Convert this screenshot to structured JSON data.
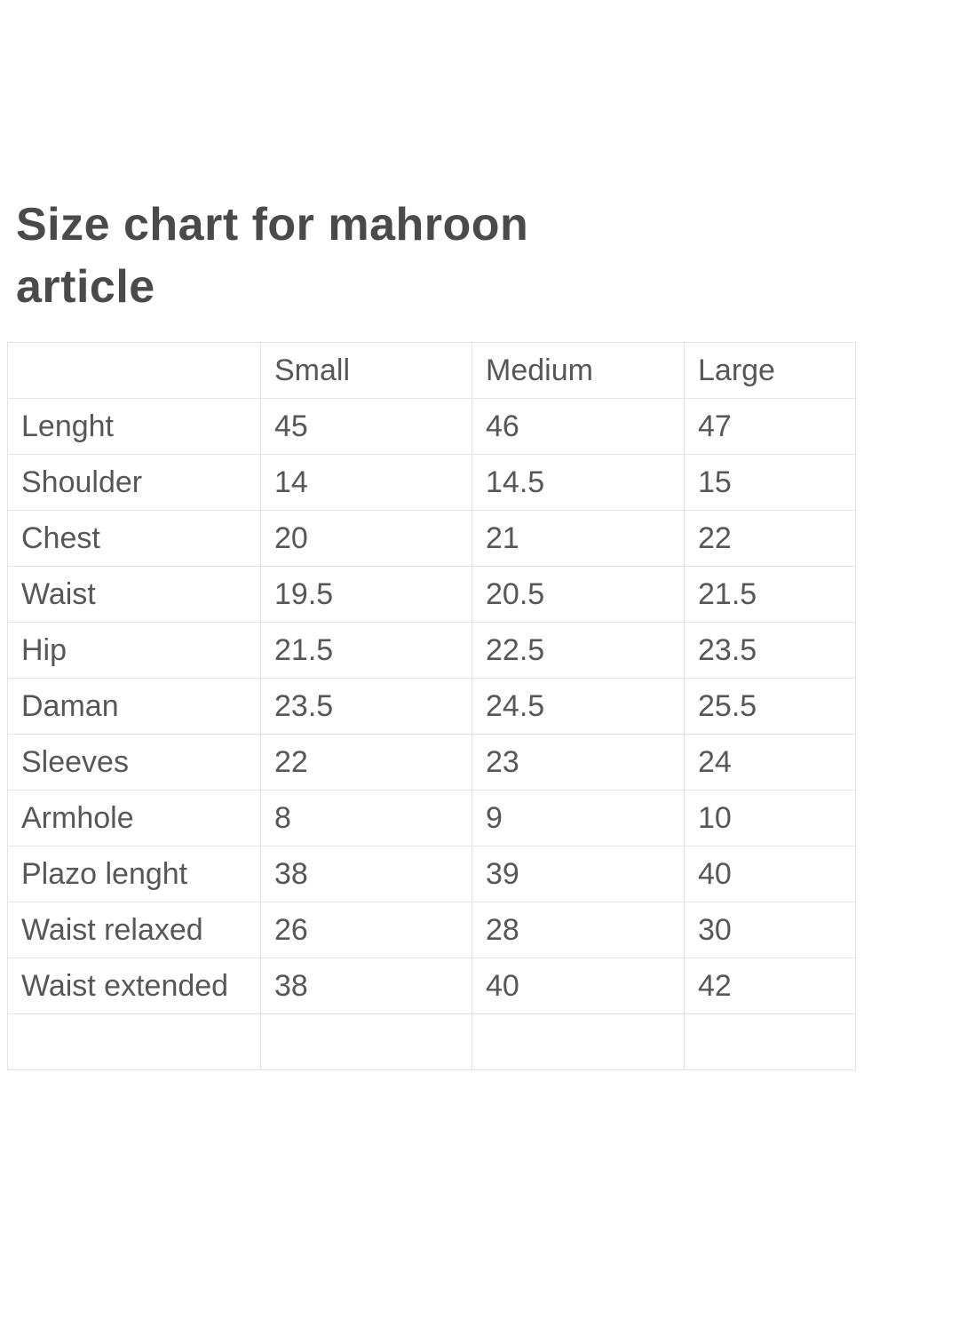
{
  "page": {
    "title": "Size chart for mahroon article",
    "title_line1": "Size chart for mahroon",
    "title_line2": "article"
  },
  "table": {
    "header": {
      "label": "",
      "small": "Small",
      "medium": "Medium",
      "large": "Large"
    },
    "rows": [
      {
        "label": "Lenght",
        "small": "45",
        "medium": "46",
        "large": "47"
      },
      {
        "label": "Shoulder",
        "small": "14",
        "medium": "14.5",
        "large": "15"
      },
      {
        "label": "Chest",
        "small": "20",
        "medium": "21",
        "large": "22"
      },
      {
        "label": "Waist",
        "small": "19.5",
        "medium": "20.5",
        "large": "21.5"
      },
      {
        "label": "Hip",
        "small": "21.5",
        "medium": "22.5",
        "large": "23.5"
      },
      {
        "label": "Daman",
        "small": "23.5",
        "medium": "24.5",
        "large": "25.5"
      },
      {
        "label": "Sleeves",
        "small": "22",
        "medium": "23",
        "large": "24"
      },
      {
        "label": "Armhole",
        "small": "8",
        "medium": "9",
        "large": "10"
      },
      {
        "label": "Plazo lenght",
        "small": "38",
        "medium": "39",
        "large": "40"
      },
      {
        "label": "Waist relaxed",
        "small": "26",
        "medium": "28",
        "large": "30"
      },
      {
        "label": "Waist extended",
        "small": "38",
        "medium": "40",
        "large": "42"
      }
    ]
  },
  "chart_data": {
    "type": "table",
    "title": "Size chart for mahroon article",
    "columns": [
      "Small",
      "Medium",
      "Large"
    ],
    "row_labels": [
      "Lenght",
      "Shoulder",
      "Chest",
      "Waist",
      "Hip",
      "Daman",
      "Sleeves",
      "Armhole",
      "Plazo lenght",
      "Waist relaxed",
      "Waist extended"
    ],
    "rows": [
      {
        "measurement": "Lenght",
        "values": [
          45,
          46,
          47
        ]
      },
      {
        "measurement": "Shoulder",
        "values": [
          14,
          14.5,
          15
        ]
      },
      {
        "measurement": "Chest",
        "values": [
          20,
          21,
          22
        ]
      },
      {
        "measurement": "Waist",
        "values": [
          19.5,
          20.5,
          21.5
        ]
      },
      {
        "measurement": "Hip",
        "values": [
          21.5,
          22.5,
          23.5
        ]
      },
      {
        "measurement": "Daman",
        "values": [
          23.5,
          24.5,
          25.5
        ]
      },
      {
        "measurement": "Sleeves",
        "values": [
          22,
          23,
          24
        ]
      },
      {
        "measurement": "Armhole",
        "values": [
          8,
          9,
          10
        ]
      },
      {
        "measurement": "Plazo lenght",
        "values": [
          38,
          39,
          40
        ]
      },
      {
        "measurement": "Waist relaxed",
        "values": [
          26,
          28,
          30
        ]
      },
      {
        "measurement": "Waist extended",
        "values": [
          38,
          40,
          42
        ]
      }
    ]
  },
  "colors": {
    "background": "#ffffff",
    "title_text": "#4a4a4a",
    "cell_text": "#575757",
    "grid_border": "#e4e4e4"
  }
}
